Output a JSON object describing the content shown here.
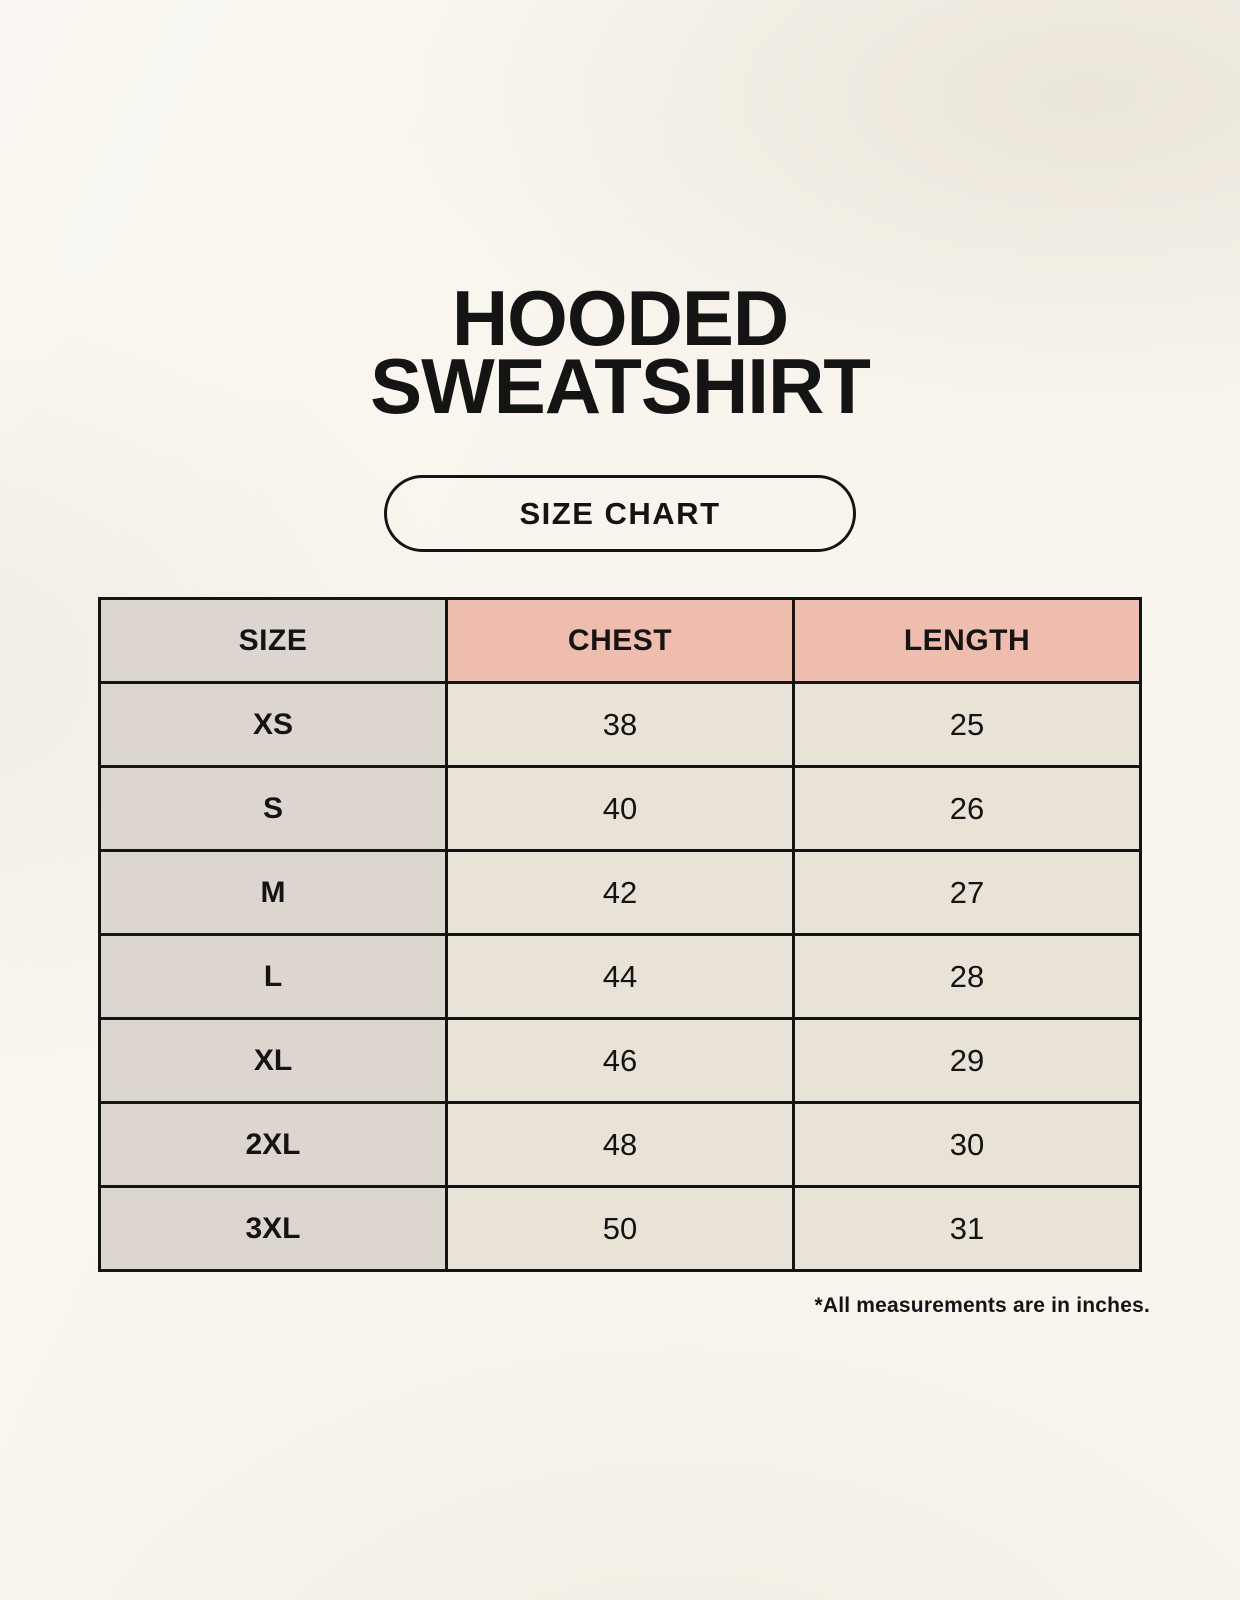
{
  "page": {
    "background": "#f9f5ed"
  },
  "header": {
    "title_line1": "HOODED",
    "title_line2": "SWEATSHIRT",
    "badge_label": "SIZE CHART"
  },
  "chart_data": {
    "type": "table",
    "title": "HOODED SWEATSHIRT",
    "subtitle": "SIZE CHART",
    "columns": [
      "SIZE",
      "CHEST",
      "LENGTH"
    ],
    "rows": [
      [
        "XS",
        38,
        25
      ],
      [
        "S",
        40,
        26
      ],
      [
        "M",
        42,
        27
      ],
      [
        "L",
        44,
        28
      ],
      [
        "XL",
        46,
        29
      ],
      [
        "2XL",
        48,
        30
      ],
      [
        "3XL",
        50,
        31
      ]
    ],
    "footnote": "*All measurements are in inches."
  },
  "colors": {
    "page_bg": "#f9f5ed",
    "size_column_bg": "#ddd6cf",
    "measure_header_bg": "#eebdae",
    "data_cell_bg": "#e9e2d7",
    "border": "#141414",
    "text": "#141414"
  }
}
